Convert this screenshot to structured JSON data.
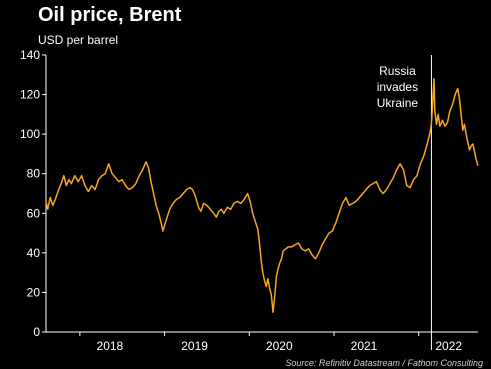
{
  "chart_data": {
    "type": "line",
    "title": "Oil price, Brent",
    "subtitle": "USD per barrel",
    "source": "Source: Refinitiv Datastream / Fathom Consulting",
    "ylim": [
      0,
      140
    ],
    "yticks": [
      0,
      20,
      40,
      60,
      80,
      100,
      120,
      140
    ],
    "xlim": [
      2017.6,
      2022.7
    ],
    "xticks": [
      {
        "label": "2018",
        "x": 2018.0
      },
      {
        "label": "2019",
        "x": 2019.0
      },
      {
        "label": "2020",
        "x": 2020.0
      },
      {
        "label": "2021",
        "x": 2021.0
      },
      {
        "label": "2022",
        "x": 2022.0
      }
    ],
    "grid": false,
    "line_color": "#f5a623",
    "annotation": {
      "lines": [
        "Russia",
        "invades",
        "Ukraine"
      ],
      "x": 2022.15
    },
    "series": [
      {
        "values": [
          [
            2017.6,
            66
          ],
          [
            2017.62,
            62
          ],
          [
            2017.65,
            68
          ],
          [
            2017.68,
            64
          ],
          [
            2017.71,
            67
          ],
          [
            2017.75,
            72
          ],
          [
            2017.78,
            75
          ],
          [
            2017.81,
            79
          ],
          [
            2017.84,
            74
          ],
          [
            2017.87,
            77
          ],
          [
            2017.9,
            75
          ],
          [
            2017.94,
            79
          ],
          [
            2017.98,
            76
          ],
          [
            2018.02,
            79
          ],
          [
            2018.06,
            74
          ],
          [
            2018.1,
            71
          ],
          [
            2018.14,
            74
          ],
          [
            2018.18,
            72
          ],
          [
            2018.22,
            77
          ],
          [
            2018.26,
            79
          ],
          [
            2018.3,
            80
          ],
          [
            2018.34,
            85
          ],
          [
            2018.38,
            80
          ],
          [
            2018.42,
            78
          ],
          [
            2018.46,
            76
          ],
          [
            2018.5,
            77
          ],
          [
            2018.54,
            74
          ],
          [
            2018.58,
            72
          ],
          [
            2018.62,
            73
          ],
          [
            2018.66,
            75
          ],
          [
            2018.7,
            79
          ],
          [
            2018.74,
            82
          ],
          [
            2018.78,
            86
          ],
          [
            2018.81,
            83
          ],
          [
            2018.84,
            76
          ],
          [
            2018.87,
            70
          ],
          [
            2018.9,
            64
          ],
          [
            2018.93,
            60
          ],
          [
            2018.96,
            55
          ],
          [
            2018.98,
            51
          ],
          [
            2019.0,
            54
          ],
          [
            2019.03,
            58
          ],
          [
            2019.06,
            62
          ],
          [
            2019.1,
            65
          ],
          [
            2019.14,
            67
          ],
          [
            2019.18,
            68
          ],
          [
            2019.22,
            70
          ],
          [
            2019.26,
            72
          ],
          [
            2019.3,
            73
          ],
          [
            2019.33,
            72
          ],
          [
            2019.36,
            69
          ],
          [
            2019.4,
            63
          ],
          [
            2019.43,
            61
          ],
          [
            2019.46,
            65
          ],
          [
            2019.5,
            64
          ],
          [
            2019.54,
            62
          ],
          [
            2019.58,
            60
          ],
          [
            2019.61,
            58
          ],
          [
            2019.64,
            61
          ],
          [
            2019.67,
            62
          ],
          [
            2019.7,
            60
          ],
          [
            2019.74,
            63
          ],
          [
            2019.78,
            62
          ],
          [
            2019.82,
            65
          ],
          [
            2019.86,
            66
          ],
          [
            2019.9,
            65
          ],
          [
            2019.94,
            67
          ],
          [
            2019.98,
            70
          ],
          [
            2020.01,
            66
          ],
          [
            2020.04,
            60
          ],
          [
            2020.07,
            56
          ],
          [
            2020.1,
            52
          ],
          [
            2020.12,
            45
          ],
          [
            2020.14,
            36
          ],
          [
            2020.16,
            30
          ],
          [
            2020.18,
            26
          ],
          [
            2020.2,
            23
          ],
          [
            2020.22,
            27
          ],
          [
            2020.24,
            22
          ],
          [
            2020.26,
            19
          ],
          [
            2020.28,
            10
          ],
          [
            2020.3,
            18
          ],
          [
            2020.32,
            28
          ],
          [
            2020.34,
            32
          ],
          [
            2020.36,
            35
          ],
          [
            2020.38,
            37
          ],
          [
            2020.4,
            41
          ],
          [
            2020.43,
            42
          ],
          [
            2020.46,
            43
          ],
          [
            2020.5,
            43
          ],
          [
            2020.54,
            44
          ],
          [
            2020.58,
            45
          ],
          [
            2020.62,
            42
          ],
          [
            2020.66,
            41
          ],
          [
            2020.7,
            42
          ],
          [
            2020.74,
            39
          ],
          [
            2020.78,
            37
          ],
          [
            2020.82,
            40
          ],
          [
            2020.86,
            44
          ],
          [
            2020.9,
            47
          ],
          [
            2020.94,
            50
          ],
          [
            2020.98,
            51
          ],
          [
            2021.02,
            55
          ],
          [
            2021.06,
            60
          ],
          [
            2021.1,
            65
          ],
          [
            2021.14,
            68
          ],
          [
            2021.18,
            64
          ],
          [
            2021.22,
            65
          ],
          [
            2021.26,
            66
          ],
          [
            2021.3,
            68
          ],
          [
            2021.34,
            70
          ],
          [
            2021.38,
            72
          ],
          [
            2021.42,
            74
          ],
          [
            2021.46,
            75
          ],
          [
            2021.5,
            76
          ],
          [
            2021.54,
            72
          ],
          [
            2021.58,
            70
          ],
          [
            2021.62,
            72
          ],
          [
            2021.66,
            75
          ],
          [
            2021.7,
            78
          ],
          [
            2021.74,
            82
          ],
          [
            2021.78,
            85
          ],
          [
            2021.82,
            82
          ],
          [
            2021.86,
            74
          ],
          [
            2021.9,
            73
          ],
          [
            2021.94,
            77
          ],
          [
            2021.98,
            79
          ],
          [
            2022.02,
            85
          ],
          [
            2022.06,
            89
          ],
          [
            2022.1,
            95
          ],
          [
            2022.13,
            100
          ],
          [
            2022.15,
            105
          ],
          [
            2022.17,
            120
          ],
          [
            2022.18,
            128
          ],
          [
            2022.19,
            112
          ],
          [
            2022.21,
            105
          ],
          [
            2022.23,
            110
          ],
          [
            2022.25,
            104
          ],
          [
            2022.28,
            107
          ],
          [
            2022.31,
            104
          ],
          [
            2022.34,
            106
          ],
          [
            2022.37,
            112
          ],
          [
            2022.4,
            115
          ],
          [
            2022.43,
            120
          ],
          [
            2022.46,
            123
          ],
          [
            2022.48,
            118
          ],
          [
            2022.5,
            110
          ],
          [
            2022.52,
            102
          ],
          [
            2022.54,
            105
          ],
          [
            2022.56,
            100
          ],
          [
            2022.58,
            96
          ],
          [
            2022.6,
            92
          ],
          [
            2022.62,
            94
          ],
          [
            2022.64,
            95
          ],
          [
            2022.66,
            91
          ],
          [
            2022.68,
            87
          ],
          [
            2022.7,
            84
          ]
        ]
      }
    ]
  }
}
